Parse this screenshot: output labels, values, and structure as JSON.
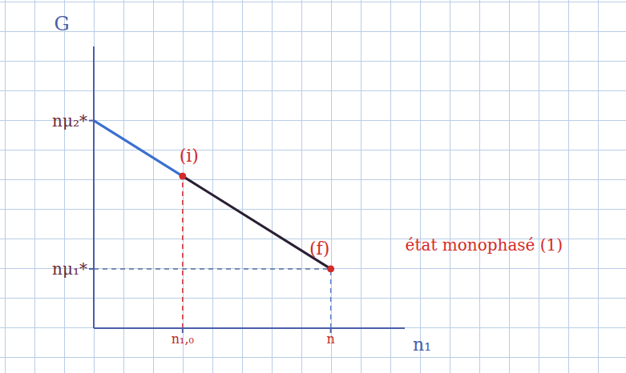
{
  "chart_data": {
    "type": "line",
    "y_label": "G",
    "x_label": "n₁",
    "x": [
      0,
      3,
      8
    ],
    "series": [
      {
        "color": "#3b6fd0",
        "values": [
          7,
          5.125,
          null
        ]
      },
      {
        "color": "#2a1f33",
        "values": [
          null,
          5.125,
          2
        ]
      }
    ],
    "xlim": [
      0,
      10.5
    ],
    "ylim": [
      0,
      9.5
    ],
    "xticks": [
      {
        "value": 3,
        "label": "n₁,₀"
      },
      {
        "value": 8,
        "label": "n"
      }
    ],
    "yticks": [
      {
        "value": 7,
        "label": "nμ₂*"
      },
      {
        "value": 2,
        "label": "nμ₁*"
      }
    ],
    "points": [
      {
        "label": "(i)",
        "x": 3,
        "y": 5.125,
        "color": "#d42a2a"
      },
      {
        "label": "(f)",
        "x": 8,
        "y": 2,
        "color": "#d42a2a",
        "note": "état monophasé (1)"
      }
    ]
  }
}
